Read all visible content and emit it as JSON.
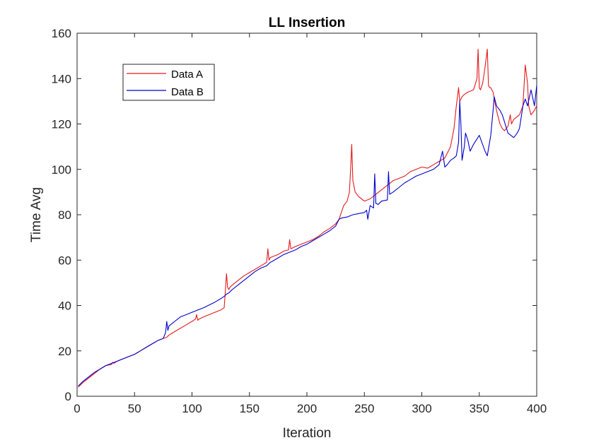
{
  "chart_data": {
    "type": "line",
    "title": "LL Insertion",
    "xlabel": "Iteration",
    "ylabel": "Time Avg",
    "xlim": [
      0,
      400
    ],
    "ylim": [
      0,
      160
    ],
    "xticks": [
      0,
      50,
      100,
      150,
      200,
      250,
      300,
      350,
      400
    ],
    "yticks": [
      0,
      20,
      40,
      60,
      80,
      100,
      120,
      140,
      160
    ],
    "grid": false,
    "legend_position": "top-left",
    "series": [
      {
        "name": "Data A",
        "color": "#e31a1c",
        "x": [
          1,
          5,
          10,
          15,
          20,
          25,
          30,
          31,
          32,
          35,
          40,
          45,
          50,
          55,
          60,
          65,
          70,
          75,
          78,
          80,
          85,
          90,
          95,
          100,
          103,
          104,
          105,
          106,
          108,
          110,
          115,
          120,
          125,
          128,
          129,
          130,
          131,
          132,
          133,
          135,
          140,
          145,
          150,
          155,
          160,
          165,
          166,
          167,
          168,
          170,
          175,
          180,
          184,
          185,
          186,
          188,
          190,
          195,
          200,
          205,
          210,
          215,
          220,
          225,
          228,
          230,
          232,
          235,
          237,
          238,
          239,
          240,
          242,
          245,
          250,
          255,
          260,
          265,
          270,
          275,
          280,
          285,
          290,
          295,
          300,
          305,
          310,
          315,
          320,
          325,
          328,
          330,
          332,
          333,
          334,
          335,
          337,
          340,
          345,
          348,
          349,
          350,
          351,
          353,
          355,
          357,
          358,
          359,
          360,
          362,
          365,
          368,
          370,
          372,
          375,
          377,
          378,
          380,
          385,
          388,
          390,
          392,
          393,
          395,
          398,
          400
        ],
        "y": [
          4,
          6,
          8,
          10,
          12,
          13.5,
          14,
          15,
          14.5,
          15.5,
          16.5,
          17.5,
          18.5,
          20,
          21.5,
          23,
          24.5,
          25.5,
          26,
          27,
          28.5,
          30,
          31.5,
          33,
          34,
          36,
          33.5,
          34,
          34.5,
          35,
          36,
          37,
          38,
          39,
          46,
          54,
          48,
          47,
          48,
          49,
          51,
          53,
          54.5,
          56,
          57.5,
          59,
          65,
          60,
          61,
          61.5,
          62.5,
          64,
          64.5,
          69,
          65,
          65.5,
          66,
          67,
          68,
          69,
          70.5,
          72.5,
          74,
          76,
          78,
          81,
          84,
          86,
          90,
          100,
          111,
          95,
          90,
          88,
          86,
          87,
          89,
          91,
          93,
          95,
          96,
          97,
          99,
          100,
          101,
          100.5,
          102,
          103.5,
          105,
          110,
          118,
          128,
          136,
          130,
          131,
          132,
          133,
          134,
          135,
          140,
          153,
          136,
          135,
          138,
          145,
          153,
          137,
          136,
          136,
          134,
          126,
          120,
          118,
          117,
          119,
          124,
          120,
          122,
          124,
          128,
          146,
          138,
          128,
          124,
          126,
          128
        ]
      },
      {
        "name": "Data B",
        "color": "#0000cc",
        "x": [
          1,
          5,
          10,
          15,
          20,
          25,
          30,
          35,
          40,
          45,
          50,
          55,
          60,
          65,
          70,
          75,
          77,
          78,
          79,
          80,
          85,
          90,
          95,
          100,
          110,
          120,
          125,
          128,
          130,
          132,
          135,
          140,
          145,
          150,
          155,
          160,
          165,
          168,
          170,
          175,
          180,
          185,
          190,
          195,
          200,
          205,
          210,
          215,
          220,
          225,
          228,
          230,
          235,
          240,
          245,
          250,
          252,
          253,
          255,
          258,
          259,
          260,
          262,
          265,
          270,
          271,
          272,
          275,
          280,
          285,
          290,
          295,
          300,
          305,
          310,
          315,
          318,
          320,
          322,
          325,
          328,
          330,
          332,
          333,
          334,
          335,
          337,
          338,
          340,
          342,
          345,
          350,
          355,
          357,
          360,
          362,
          363,
          365,
          368,
          370,
          375,
          380,
          383,
          385,
          388,
          390,
          392,
          395,
          398,
          400
        ],
        "y": [
          4.5,
          6.5,
          8.5,
          10.5,
          12,
          13.5,
          14.5,
          15.5,
          16.5,
          17.5,
          18.5,
          20,
          21.5,
          23,
          24.5,
          25.5,
          28,
          33,
          29,
          31,
          33,
          35,
          36,
          37,
          39,
          41.5,
          43,
          44,
          45,
          45.5,
          47,
          49,
          51,
          53,
          55,
          56.5,
          57.5,
          59,
          59.5,
          61,
          62.5,
          63.5,
          64.5,
          66,
          67,
          68.5,
          70,
          71.5,
          73,
          75,
          78,
          78.5,
          79,
          80,
          80.5,
          81,
          82,
          78,
          84,
          83,
          98,
          85,
          84.5,
          86,
          86.5,
          99,
          89,
          90,
          92,
          94,
          95.5,
          97,
          98,
          99,
          100,
          102,
          108,
          101,
          102,
          104,
          105,
          106,
          112,
          130,
          120,
          104,
          110,
          116,
          113,
          108,
          111,
          115,
          108,
          106,
          115,
          126,
          132,
          128,
          126,
          124,
          116,
          114,
          116,
          118,
          128,
          131,
          128,
          135,
          128,
          137
        ]
      }
    ]
  }
}
